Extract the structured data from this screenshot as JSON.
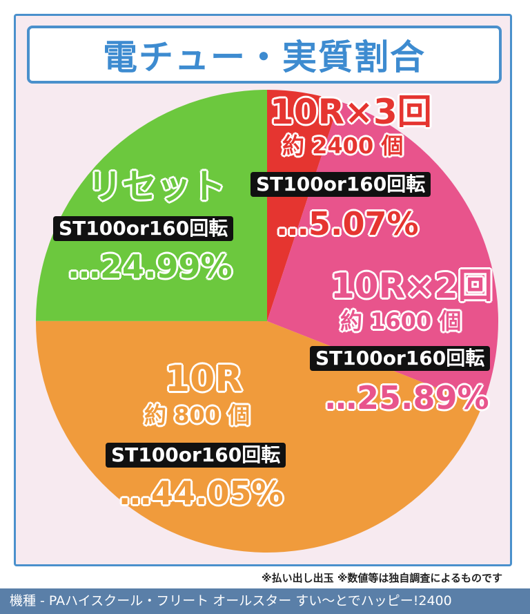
{
  "header": {
    "title": "電チュー・実質割合"
  },
  "chart_data": {
    "type": "pie",
    "title": "電チュー・実質割合",
    "slices": [
      {
        "label": "10R×3回",
        "sub": "約 2400 個",
        "detail": "ST100or160回転",
        "pct_text": "…5.07%",
        "value": 5.07,
        "color": "#e53530"
      },
      {
        "label": "10R×2回",
        "sub": "約 1600 個",
        "detail": "ST100or160回転",
        "pct_text": "…25.89%",
        "value": 25.89,
        "color": "#e8548c"
      },
      {
        "label": "10R",
        "sub": "約 800 個",
        "detail": "ST100or160回転",
        "pct_text": "…44.05%",
        "value": 44.05,
        "color": "#f09b3c"
      },
      {
        "label": "リセット",
        "sub": "",
        "detail": "ST100or160回転",
        "pct_text": "…24.99%",
        "value": 24.99,
        "color": "#6cc83e"
      }
    ]
  },
  "note": "※払い出し出玉 ※数値等は独自調査によるものです",
  "footer": "機種 - PAハイスクール・フリート オールスター すい〜とでハッピー!2400"
}
